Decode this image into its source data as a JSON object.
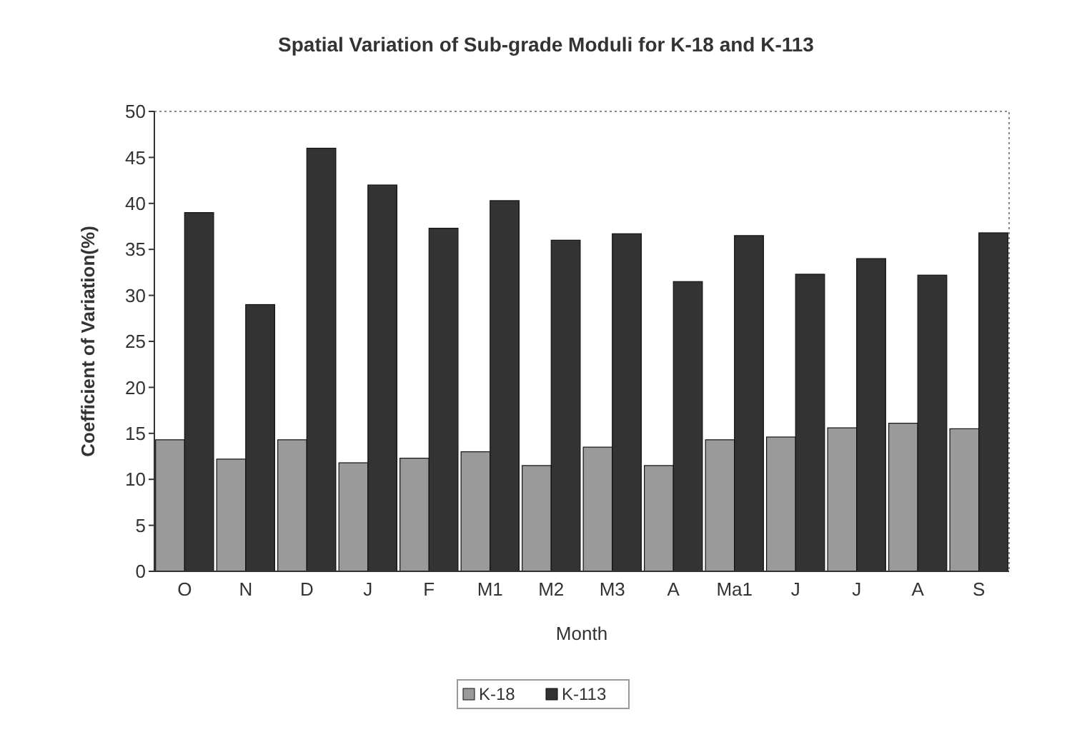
{
  "chart_data": {
    "type": "bar",
    "title": "Spatial Variation of Sub-grade Moduli for K-18 and K-113",
    "xlabel": "Month",
    "ylabel": "Coefficient of Variation(%)",
    "categories": [
      "O",
      "N",
      "D",
      "J",
      "F",
      "M1",
      "M2",
      "M3",
      "A",
      "Ma1",
      "J",
      "J",
      "A",
      "S"
    ],
    "series": [
      {
        "name": "K-18",
        "color": "#9a9a9a",
        "values": [
          14.3,
          12.2,
          14.3,
          11.8,
          12.3,
          13,
          11.5,
          13.5,
          11.5,
          14.3,
          14.6,
          15.6,
          16.1,
          15.5
        ]
      },
      {
        "name": "K-113",
        "color": "#333333",
        "values": [
          39,
          29,
          46,
          42,
          37.3,
          40.3,
          36,
          36.7,
          31.5,
          36.5,
          32.3,
          34,
          32.2,
          36.8
        ]
      }
    ],
    "ylim": [
      0,
      50
    ],
    "yticks": [
      0,
      5,
      10,
      15,
      20,
      25,
      30,
      35,
      40,
      45,
      50
    ],
    "grid": false,
    "legend": "bottom"
  }
}
